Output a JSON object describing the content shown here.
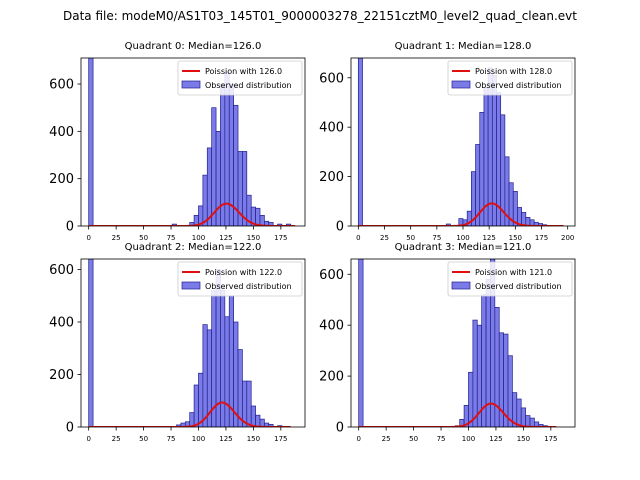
{
  "figure": {
    "suptitle": "Data file: modeM0/AS1T03_145T01_9000003278_22151cztM0_level2_quad_clean.evt"
  },
  "colors": {
    "bar_fill": "#7b7be8",
    "bar_edge": "#1f1f8f",
    "line": "#e01010"
  },
  "chart_data": [
    {
      "type": "bar",
      "title": "Quadrant 0: Median=126.0",
      "xlabel": "",
      "ylabel": "",
      "xlim": [
        -7,
        197
      ],
      "ylim": [
        0,
        710
      ],
      "xticks": [
        0,
        25,
        50,
        75,
        100,
        125,
        150,
        175
      ],
      "yticks": [
        0,
        200,
        400,
        600
      ],
      "legend": {
        "position": "top-right",
        "entries": [
          "Poission with 126.0",
          "Observed distribution"
        ]
      },
      "bin_width": 4,
      "bins": [
        {
          "x": 0,
          "y": 710
        },
        {
          "x": 76,
          "y": 8
        },
        {
          "x": 92,
          "y": 15
        },
        {
          "x": 96,
          "y": 45
        },
        {
          "x": 100,
          "y": 85
        },
        {
          "x": 104,
          "y": 215
        },
        {
          "x": 108,
          "y": 330
        },
        {
          "x": 112,
          "y": 500
        },
        {
          "x": 116,
          "y": 400
        },
        {
          "x": 120,
          "y": 600
        },
        {
          "x": 124,
          "y": 650
        },
        {
          "x": 128,
          "y": 600
        },
        {
          "x": 132,
          "y": 510
        },
        {
          "x": 136,
          "y": 315
        },
        {
          "x": 140,
          "y": 315
        },
        {
          "x": 144,
          "y": 130
        },
        {
          "x": 148,
          "y": 80
        },
        {
          "x": 152,
          "y": 75
        },
        {
          "x": 156,
          "y": 45
        },
        {
          "x": 160,
          "y": 20
        },
        {
          "x": 164,
          "y": 15
        },
        {
          "x": 172,
          "y": 8
        },
        {
          "x": 180,
          "y": 8
        }
      ],
      "series": [
        {
          "name": "Poission with 126.0",
          "mean": 126.0,
          "scale": 2660,
          "x_range": [
            0,
            188
          ]
        }
      ]
    },
    {
      "type": "bar",
      "title": "Quadrant 1: Median=128.0",
      "xlabel": "",
      "ylabel": "",
      "xlim": [
        -7,
        207
      ],
      "ylim": [
        0,
        680
      ],
      "xticks": [
        0,
        25,
        50,
        75,
        100,
        125,
        150,
        175,
        200
      ],
      "yticks": [
        0,
        200,
        400,
        600
      ],
      "legend": {
        "position": "top-right",
        "entries": [
          "Poission with 128.0",
          "Observed distribution"
        ]
      },
      "bin_width": 4,
      "bins": [
        {
          "x": 0,
          "y": 680
        },
        {
          "x": 84,
          "y": 8
        },
        {
          "x": 96,
          "y": 30
        },
        {
          "x": 100,
          "y": 25
        },
        {
          "x": 104,
          "y": 60
        },
        {
          "x": 108,
          "y": 220
        },
        {
          "x": 112,
          "y": 330
        },
        {
          "x": 116,
          "y": 460
        },
        {
          "x": 120,
          "y": 560
        },
        {
          "x": 124,
          "y": 640
        },
        {
          "x": 128,
          "y": 610
        },
        {
          "x": 132,
          "y": 540
        },
        {
          "x": 136,
          "y": 450
        },
        {
          "x": 140,
          "y": 280
        },
        {
          "x": 144,
          "y": 175
        },
        {
          "x": 148,
          "y": 140
        },
        {
          "x": 152,
          "y": 75
        },
        {
          "x": 156,
          "y": 55
        },
        {
          "x": 160,
          "y": 35
        },
        {
          "x": 164,
          "y": 25
        },
        {
          "x": 168,
          "y": 15
        },
        {
          "x": 172,
          "y": 10
        },
        {
          "x": 176,
          "y": 5
        }
      ],
      "series": [
        {
          "name": "Poission with 128.0",
          "mean": 128.0,
          "scale": 2600,
          "x_range": [
            0,
            196
          ]
        }
      ]
    },
    {
      "type": "bar",
      "title": "Quadrant 2: Median=122.0",
      "xlabel": "",
      "ylabel": "",
      "xlim": [
        -7,
        197
      ],
      "ylim": [
        0,
        640
      ],
      "xticks": [
        0,
        25,
        50,
        75,
        100,
        125,
        150,
        175
      ],
      "yticks": [
        0,
        200,
        400,
        600
      ],
      "legend": {
        "position": "top-right",
        "entries": [
          "Poission with 122.0",
          "Observed distribution"
        ]
      },
      "bin_width": 4,
      "bins": [
        {
          "x": 0,
          "y": 640
        },
        {
          "x": 80,
          "y": 8
        },
        {
          "x": 84,
          "y": 15
        },
        {
          "x": 88,
          "y": 20
        },
        {
          "x": 92,
          "y": 55
        },
        {
          "x": 96,
          "y": 160
        },
        {
          "x": 100,
          "y": 205
        },
        {
          "x": 104,
          "y": 390
        },
        {
          "x": 108,
          "y": 370
        },
        {
          "x": 112,
          "y": 520
        },
        {
          "x": 116,
          "y": 600
        },
        {
          "x": 120,
          "y": 520
        },
        {
          "x": 124,
          "y": 420
        },
        {
          "x": 128,
          "y": 500
        },
        {
          "x": 132,
          "y": 400
        },
        {
          "x": 136,
          "y": 295
        },
        {
          "x": 140,
          "y": 175
        },
        {
          "x": 144,
          "y": 175
        },
        {
          "x": 148,
          "y": 80
        },
        {
          "x": 152,
          "y": 45
        },
        {
          "x": 156,
          "y": 30
        },
        {
          "x": 160,
          "y": 15
        },
        {
          "x": 164,
          "y": 10
        },
        {
          "x": 172,
          "y": 5
        }
      ],
      "series": [
        {
          "name": "Poission with 122.0",
          "mean": 122.0,
          "scale": 2580,
          "x_range": [
            0,
            184
          ]
        }
      ]
    },
    {
      "type": "bar",
      "title": "Quadrant 3: Median=121.0",
      "xlabel": "",
      "ylabel": "",
      "xlim": [
        -7,
        197
      ],
      "ylim": [
        0,
        660
      ],
      "xticks": [
        0,
        25,
        50,
        75,
        100,
        125,
        150,
        175
      ],
      "yticks": [
        0,
        200,
        400,
        600
      ],
      "legend": {
        "position": "top-right",
        "entries": [
          "Poission with 121.0",
          "Observed distribution"
        ]
      },
      "bin_width": 4,
      "bins": [
        {
          "x": 0,
          "y": 660
        },
        {
          "x": 88,
          "y": 5
        },
        {
          "x": 92,
          "y": 30
        },
        {
          "x": 96,
          "y": 85
        },
        {
          "x": 100,
          "y": 215
        },
        {
          "x": 104,
          "y": 420
        },
        {
          "x": 108,
          "y": 400
        },
        {
          "x": 112,
          "y": 520
        },
        {
          "x": 116,
          "y": 580
        },
        {
          "x": 120,
          "y": 660
        },
        {
          "x": 124,
          "y": 470
        },
        {
          "x": 128,
          "y": 370
        },
        {
          "x": 132,
          "y": 365
        },
        {
          "x": 136,
          "y": 280
        },
        {
          "x": 140,
          "y": 135
        },
        {
          "x": 144,
          "y": 110
        },
        {
          "x": 148,
          "y": 75
        },
        {
          "x": 152,
          "y": 45
        },
        {
          "x": 156,
          "y": 35
        },
        {
          "x": 160,
          "y": 20
        },
        {
          "x": 164,
          "y": 10
        },
        {
          "x": 168,
          "y": 5
        }
      ],
      "series": [
        {
          "name": "Poission with 121.0",
          "mean": 121.0,
          "scale": 2540,
          "x_range": [
            0,
            180
          ]
        }
      ]
    }
  ]
}
